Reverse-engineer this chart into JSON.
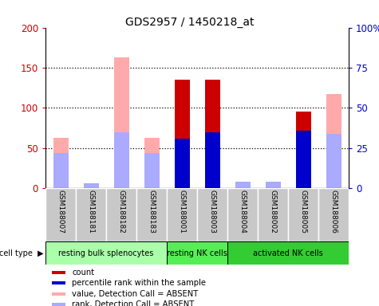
{
  "title": "GDS2957 / 1450218_at",
  "samples": [
    "GSM188007",
    "GSM188181",
    "GSM188182",
    "GSM188183",
    "GSM188001",
    "GSM188003",
    "GSM188004",
    "GSM188002",
    "GSM188005",
    "GSM188006"
  ],
  "count_values": [
    0,
    0,
    0,
    0,
    135,
    135,
    0,
    0,
    95,
    0
  ],
  "percentile_values": [
    0,
    0,
    0,
    0,
    31,
    35,
    0,
    0,
    36,
    0
  ],
  "absent_value_vals": [
    63,
    0,
    163,
    63,
    0,
    0,
    0,
    0,
    0,
    117
  ],
  "absent_rank_vals": [
    22,
    3,
    35,
    22,
    0,
    0,
    4,
    4,
    0,
    34
  ],
  "cell_types": [
    {
      "label": "resting bulk splenocytes",
      "start": 0,
      "end": 4
    },
    {
      "label": "resting NK cells",
      "start": 4,
      "end": 6
    },
    {
      "label": "activated NK cells",
      "start": 6,
      "end": 10
    }
  ],
  "cell_type_colors": [
    "#aaffaa",
    "#66ee66",
    "#44dd44"
  ],
  "ylim_left": [
    0,
    200
  ],
  "ylim_right": [
    0,
    100
  ],
  "yticks_left": [
    0,
    50,
    100,
    150,
    200
  ],
  "ytick_labels_left": [
    "0",
    "50",
    "100",
    "150",
    "200"
  ],
  "yticks_right": [
    0,
    25,
    50,
    75,
    100
  ],
  "ytick_labels_right": [
    "0",
    "25",
    "50",
    "75",
    "100%"
  ],
  "color_count": "#cc0000",
  "color_percentile": "#0000cc",
  "color_absent_value": "#ffaaaa",
  "color_absent_rank": "#aaaaff",
  "bar_width": 0.5,
  "legend_items": [
    {
      "color": "#cc0000",
      "label": "count"
    },
    {
      "color": "#0000cc",
      "label": "percentile rank within the sample"
    },
    {
      "color": "#ffaaaa",
      "label": "value, Detection Call = ABSENT"
    },
    {
      "color": "#aaaaff",
      "label": "rank, Detection Call = ABSENT"
    }
  ],
  "cell_type_label": "cell type",
  "axis_label_color_left": "#cc0000",
  "axis_label_color_right": "#0000cc",
  "sample_box_color": "#c8c8c8",
  "cell_type_row_colors": [
    "#aaffaa",
    "#55ee55",
    "#33dd33"
  ]
}
